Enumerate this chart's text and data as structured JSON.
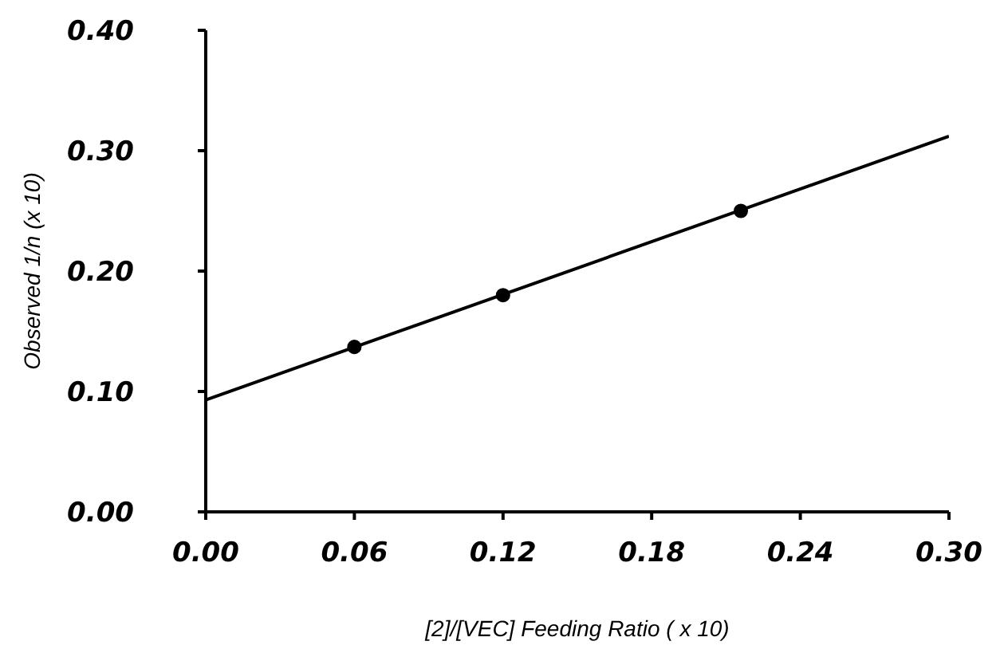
{
  "chart_data": {
    "type": "scatter",
    "xlabel": "[2]/[VEC] Feeding Ratio ( x 10)",
    "ylabel": "Observed 1/n (x 10)",
    "xlim": [
      0,
      0.3
    ],
    "xticks": [
      {
        "value": 0,
        "label": "0.00"
      },
      {
        "value": 0.06,
        "label": "0.06"
      },
      {
        "value": 0.12,
        "label": "0.12"
      },
      {
        "value": 0.18,
        "label": "0.18"
      },
      {
        "value": 0.24,
        "label": "0.24"
      },
      {
        "value": 0.3,
        "label": "0.30"
      }
    ],
    "ylim": [
      0,
      0.4
    ],
    "yticks": [
      {
        "value": 0,
        "label": "0.00"
      },
      {
        "value": 0.1,
        "label": "0.10"
      },
      {
        "value": 0.2,
        "label": "0.20"
      },
      {
        "value": 0.3,
        "label": "0.30"
      },
      {
        "value": 0.4,
        "label": "0.40"
      }
    ],
    "series": [
      {
        "color": "#000000",
        "x": [
          0.06,
          0.12,
          0.216
        ],
        "values": [
          0.137,
          0.18,
          0.25
        ],
        "marker": "circle"
      },
      {
        "type": "line",
        "color": "#000000",
        "x": [
          0,
          0.3
        ],
        "values": [
          0.093,
          0.312
        ],
        "marker": "none",
        "line_style": "solid"
      }
    ],
    "grid": false
  }
}
